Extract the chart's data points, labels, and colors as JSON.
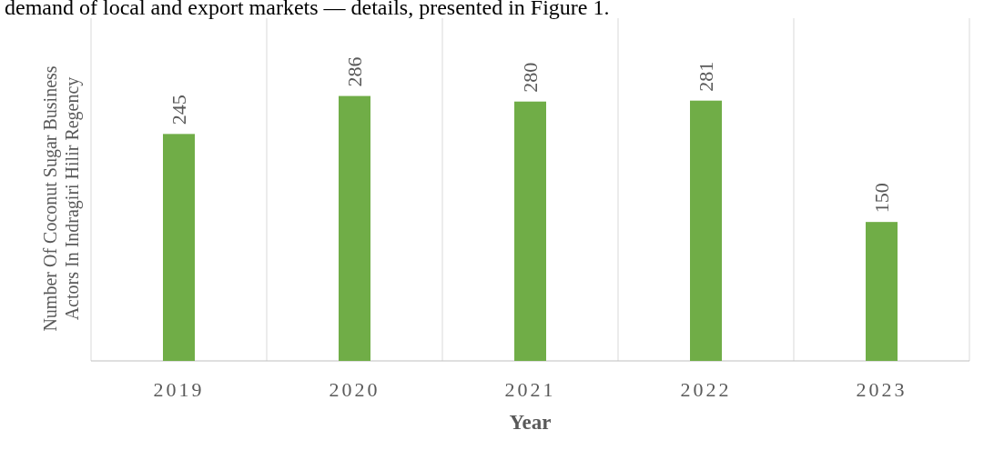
{
  "chart_data": {
    "type": "bar",
    "xlabel": "Year",
    "ylabel": "Number Of Coconut Sugar Business Actors In Indragiri Hilir Regency",
    "categories": [
      "2019",
      "2020",
      "2021",
      "2022",
      "2023"
    ],
    "values": [
      245,
      286,
      280,
      281,
      150
    ],
    "color": "#70ad47",
    "data_labels": true,
    "ylim": [
      0,
      370
    ],
    "grid": "x",
    "tick_labels": "x",
    "annotations": [
      "demand of local and export markets — details, presented in Figure 1."
    ]
  }
}
